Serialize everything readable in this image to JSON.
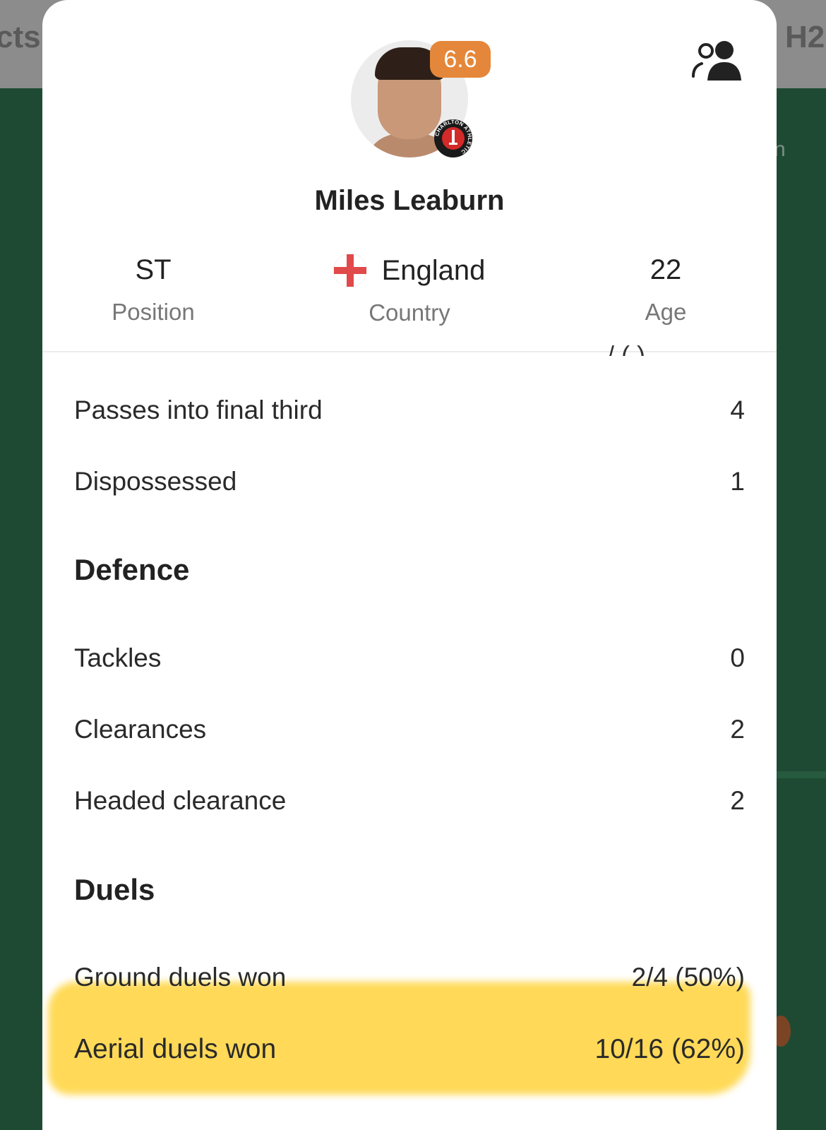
{
  "background": {
    "left_tab_text": "cts",
    "right_tab_text": "H2",
    "right_edge_text": "n"
  },
  "colors": {
    "rating_badge": "#e5873a",
    "highlight": "#ffd84f",
    "background_green": "#1e4a33"
  },
  "player": {
    "rating": "6.6",
    "name": "Miles Leaburn",
    "club_badge": "Charlton Athletic",
    "position": {
      "value": "ST",
      "label": "Position"
    },
    "country": {
      "value": "England",
      "label": "Country",
      "flag": "england-flag"
    },
    "age": {
      "value": "22",
      "label": "Age"
    }
  },
  "icons": {
    "compare": "people-icon"
  },
  "partial_row_value": "/ (   )",
  "rows_top": [
    {
      "label": "Passes into final third",
      "value": "4"
    },
    {
      "label": "Dispossessed",
      "value": "1"
    }
  ],
  "defence": {
    "title": "Defence",
    "rows": [
      {
        "label": "Tackles",
        "value": "0"
      },
      {
        "label": "Clearances",
        "value": "2"
      },
      {
        "label": "Headed clearance",
        "value": "2"
      }
    ]
  },
  "duels": {
    "title": "Duels",
    "rows": [
      {
        "label": "Ground duels won",
        "value": "2/4 (50%)"
      },
      {
        "label": "Aerial duels won",
        "value": "10/16 (62%)"
      }
    ]
  }
}
